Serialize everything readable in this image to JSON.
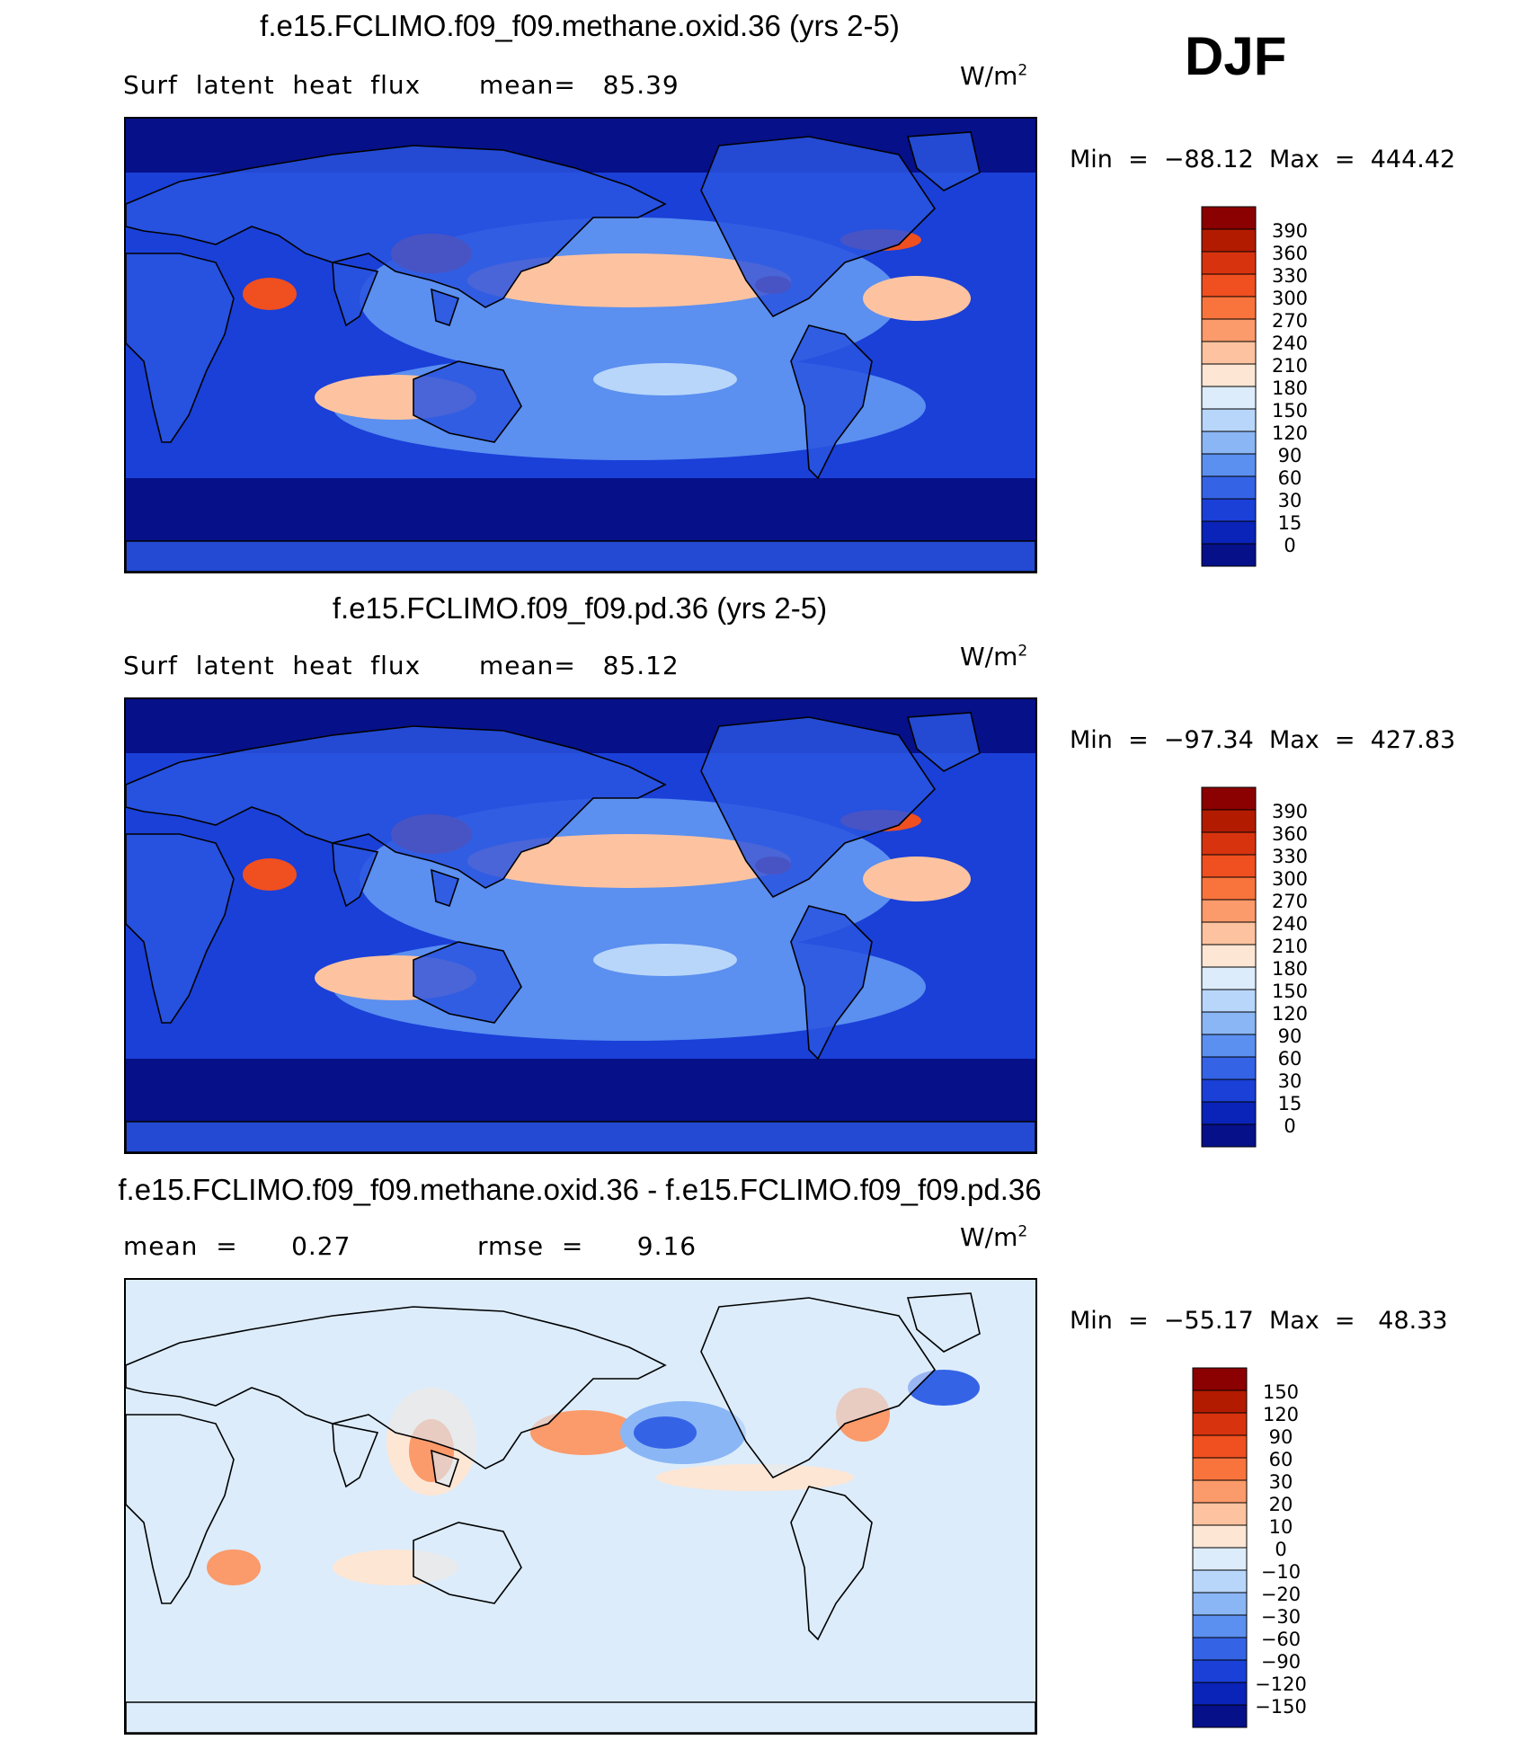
{
  "season": "DJF",
  "units": {
    "base": "W/m",
    "exp": "2"
  },
  "panels": [
    {
      "id": "test",
      "title": "f.e15.FCLIMO.f09_f09.methane.oxid.36 (yrs 2-5)",
      "subtitle_left": "Surf  latent  heat  flux",
      "subtitle_right": "mean=   85.39",
      "min_max": "Min  =  −88.12  Max  =  444.42",
      "colorbar_labels": [
        "390",
        "360",
        "330",
        "300",
        "270",
        "240",
        "210",
        "180",
        "150",
        "120",
        "90",
        "60",
        "30",
        "15",
        "0"
      ],
      "colorbar_colors": [
        "#8b0000",
        "#b31b00",
        "#d8330f",
        "#f04f20",
        "#f8743c",
        "#fb9a6a",
        "#fdc3a0",
        "#fde6d4",
        "#dcecfb",
        "#b8d6fa",
        "#8ab6f5",
        "#5b8ff0",
        "#3563e6",
        "#1a40d8",
        "#0a23b8",
        "#061088"
      ]
    },
    {
      "id": "control",
      "title": "f.e15.FCLIMO.f09_f09.pd.36 (yrs 2-5)",
      "subtitle_left": "Surf  latent  heat  flux",
      "subtitle_right": "mean=   85.12",
      "min_max": "Min  =  −97.34  Max  =  427.83",
      "colorbar_labels": [
        "390",
        "360",
        "330",
        "300",
        "270",
        "240",
        "210",
        "180",
        "150",
        "120",
        "90",
        "60",
        "30",
        "15",
        "0"
      ],
      "colorbar_colors": [
        "#8b0000",
        "#b31b00",
        "#d8330f",
        "#f04f20",
        "#f8743c",
        "#fb9a6a",
        "#fdc3a0",
        "#fde6d4",
        "#dcecfb",
        "#b8d6fa",
        "#8ab6f5",
        "#5b8ff0",
        "#3563e6",
        "#1a40d8",
        "#0a23b8",
        "#061088"
      ]
    },
    {
      "id": "diff",
      "title": "f.e15.FCLIMO.f09_f09.methane.oxid.36 - f.e15.FCLIMO.f09_f09.pd.36",
      "subtitle_left": "mean  =      0.27",
      "subtitle_right": "rmse  =      9.16",
      "min_max": "Min  =  −55.17  Max  =   48.33",
      "colorbar_labels": [
        "150",
        "120",
        "90",
        "60",
        "30",
        "20",
        "10",
        "0",
        "−10",
        "−20",
        "−30",
        "−60",
        "−90",
        "−120",
        "−150"
      ],
      "colorbar_colors": [
        "#8b0000",
        "#b31b00",
        "#d8330f",
        "#f04f20",
        "#f8743c",
        "#fb9a6a",
        "#fdc3a0",
        "#fde6d4",
        "#dcecfb",
        "#b8d6fa",
        "#8ab6f5",
        "#5b8ff0",
        "#3563e6",
        "#1a40d8",
        "#0a23b8",
        "#061088"
      ]
    }
  ],
  "map_colors": {
    "ocean_high_lat": "#061088",
    "ocean_mid": "#1a40d8",
    "ocean_sub": "#5b8ff0",
    "ocean_trop": "#b8d6fa",
    "warm": "#fdc3a0",
    "hot": "#f04f20",
    "land": "#2a55e0",
    "diff_bg": "#dcecfb",
    "diff_pos": "#fde6d4",
    "diff_pos2": "#fb9a6a",
    "diff_neg": "#8ab6f5",
    "diff_neg2": "#3563e6"
  }
}
